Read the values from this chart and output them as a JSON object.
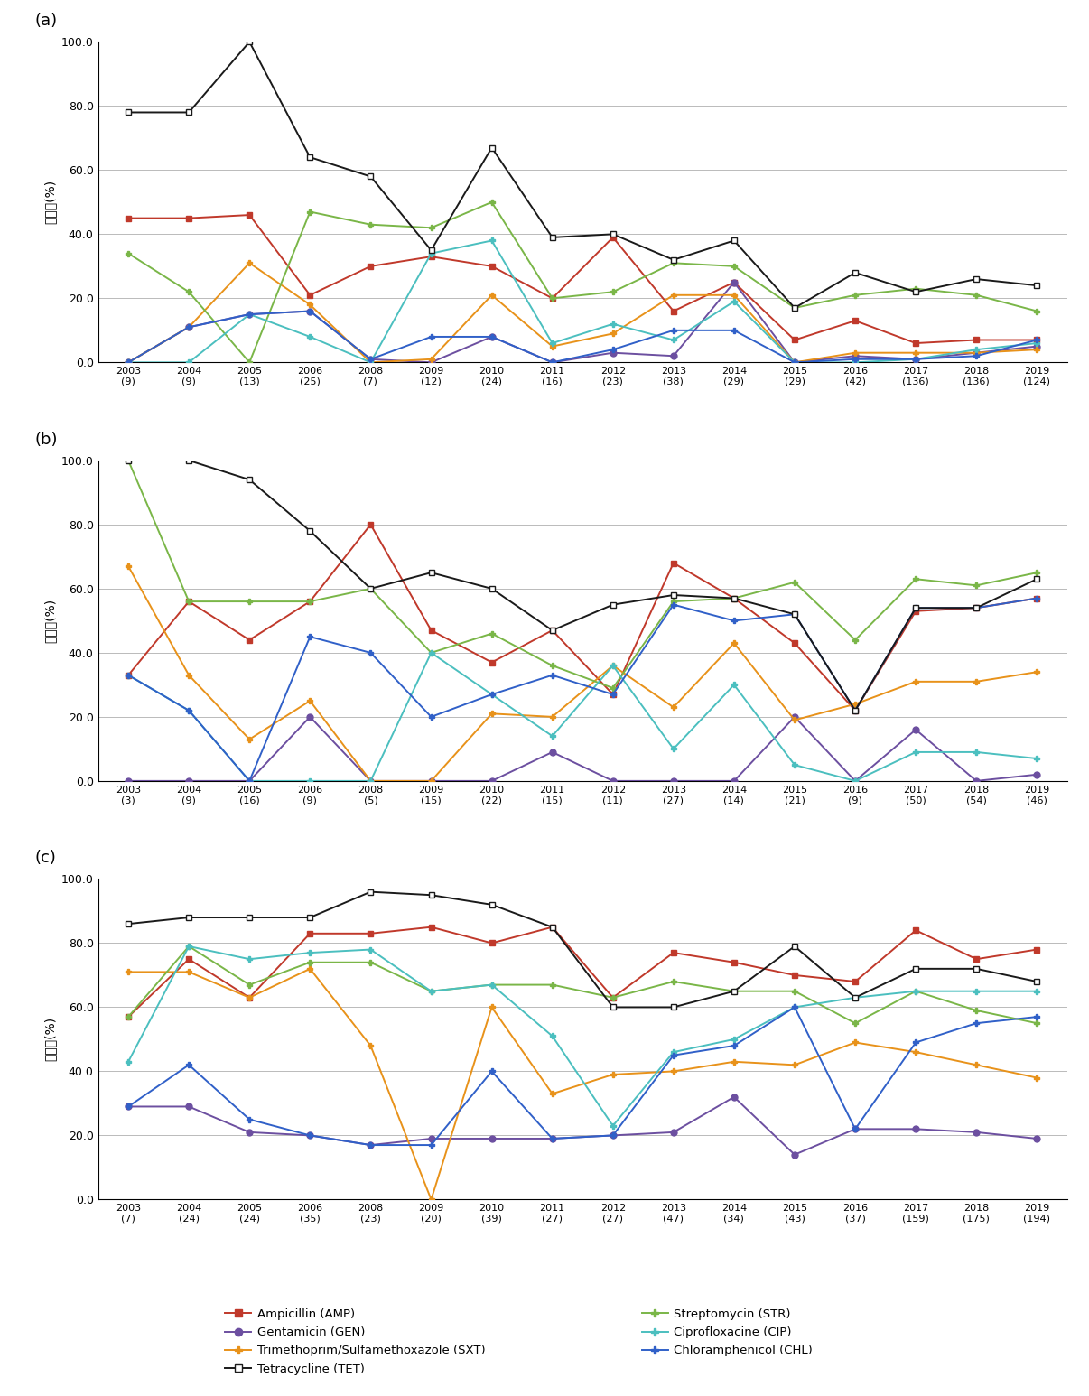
{
  "years_a": [
    "2003\n(9)",
    "2004\n(9)",
    "2005\n(13)",
    "2006\n(25)",
    "2008\n(7)",
    "2009\n(12)",
    "2010\n(24)",
    "2011\n(16)",
    "2012\n(23)",
    "2013\n(38)",
    "2014\n(29)",
    "2015\n(29)",
    "2016\n(42)",
    "2017\n(136)",
    "2018\n(136)",
    "2019\n(124)"
  ],
  "years_b": [
    "2003\n(3)",
    "2004\n(9)",
    "2005\n(16)",
    "2006\n(9)",
    "2008\n(5)",
    "2009\n(15)",
    "2010\n(22)",
    "2011\n(15)",
    "2012\n(11)",
    "2013\n(27)",
    "2014\n(14)",
    "2015\n(21)",
    "2016\n(9)",
    "2017\n(50)",
    "2018\n(54)",
    "2019\n(46)"
  ],
  "years_c": [
    "2003\n(7)",
    "2004\n(24)",
    "2005\n(24)",
    "2006\n(35)",
    "2008\n(23)",
    "2009\n(20)",
    "2010\n(39)",
    "2011\n(27)",
    "2012\n(27)",
    "2013\n(47)",
    "2014\n(34)",
    "2015\n(43)",
    "2016\n(37)",
    "2017\n(159)",
    "2018\n(175)",
    "2019\n(194)"
  ],
  "a_AMP": [
    45.0,
    45.0,
    46.0,
    21.0,
    30.0,
    33.0,
    30.0,
    20.0,
    39.0,
    16.0,
    25.0,
    7.0,
    13.0,
    6.0,
    7.0,
    7.0
  ],
  "a_GEN": [
    0.0,
    11.0,
    15.0,
    16.0,
    1.0,
    0.0,
    8.0,
    0.0,
    3.0,
    2.0,
    25.0,
    0.0,
    2.0,
    1.0,
    3.0,
    5.0
  ],
  "a_SXT": [
    0.0,
    11.0,
    31.0,
    18.0,
    0.0,
    1.0,
    21.0,
    5.0,
    9.0,
    21.0,
    21.0,
    0.0,
    3.0,
    3.0,
    3.0,
    4.0
  ],
  "a_TET": [
    78.0,
    78.0,
    100.0,
    64.0,
    58.0,
    35.0,
    67.0,
    39.0,
    40.0,
    32.0,
    38.0,
    17.0,
    28.0,
    22.0,
    26.0,
    24.0
  ],
  "a_STR": [
    34.0,
    22.0,
    0.0,
    47.0,
    43.0,
    42.0,
    50.0,
    20.0,
    22.0,
    31.0,
    30.0,
    17.0,
    21.0,
    23.0,
    21.0,
    16.0
  ],
  "a_CIP": [
    0.0,
    0.0,
    15.0,
    8.0,
    0.0,
    34.0,
    38.0,
    6.0,
    12.0,
    7.0,
    19.0,
    0.0,
    0.0,
    1.0,
    4.0,
    6.0
  ],
  "a_CHL": [
    0.0,
    11.0,
    15.0,
    16.0,
    1.0,
    8.0,
    8.0,
    0.0,
    4.0,
    10.0,
    10.0,
    0.0,
    1.0,
    1.0,
    2.0,
    7.0
  ],
  "b_AMP": [
    33.0,
    56.0,
    44.0,
    56.0,
    80.0,
    47.0,
    37.0,
    47.0,
    27.0,
    68.0,
    57.0,
    43.0,
    22.0,
    53.0,
    54.0,
    57.0
  ],
  "b_GEN": [
    0.0,
    0.0,
    0.0,
    20.0,
    0.0,
    0.0,
    0.0,
    9.0,
    0.0,
    0.0,
    0.0,
    20.0,
    0.0,
    16.0,
    0.0,
    2.0
  ],
  "b_SXT": [
    67.0,
    33.0,
    13.0,
    25.0,
    0.0,
    0.0,
    21.0,
    20.0,
    36.0,
    23.0,
    43.0,
    19.0,
    24.0,
    31.0,
    31.0,
    34.0
  ],
  "b_TET": [
    100.0,
    100.0,
    94.0,
    78.0,
    60.0,
    65.0,
    60.0,
    47.0,
    55.0,
    58.0,
    57.0,
    52.0,
    22.0,
    54.0,
    54.0,
    63.0
  ],
  "b_STR": [
    100.0,
    56.0,
    56.0,
    56.0,
    60.0,
    40.0,
    46.0,
    36.0,
    29.0,
    56.0,
    57.0,
    62.0,
    44.0,
    63.0,
    61.0,
    65.0
  ],
  "b_CIP": [
    33.0,
    22.0,
    0.0,
    0.0,
    0.0,
    40.0,
    27.0,
    14.0,
    36.0,
    10.0,
    30.0,
    5.0,
    0.0,
    9.0,
    9.0,
    7.0
  ],
  "b_CHL": [
    33.0,
    22.0,
    0.0,
    45.0,
    40.0,
    20.0,
    27.0,
    33.0,
    27.0,
    55.0,
    50.0,
    52.0,
    22.0,
    54.0,
    54.0,
    57.0
  ],
  "c_AMP": [
    57.0,
    75.0,
    63.0,
    83.0,
    83.0,
    85.0,
    80.0,
    85.0,
    63.0,
    77.0,
    74.0,
    70.0,
    68.0,
    84.0,
    75.0,
    78.0
  ],
  "c_GEN": [
    29.0,
    29.0,
    21.0,
    20.0,
    17.0,
    19.0,
    19.0,
    19.0,
    20.0,
    21.0,
    32.0,
    14.0,
    22.0,
    22.0,
    21.0,
    19.0
  ],
  "c_SXT": [
    71.0,
    71.0,
    63.0,
    72.0,
    48.0,
    0.0,
    60.0,
    33.0,
    39.0,
    40.0,
    43.0,
    42.0,
    49.0,
    46.0,
    42.0,
    38.0
  ],
  "c_TET": [
    86.0,
    88.0,
    88.0,
    88.0,
    96.0,
    95.0,
    92.0,
    85.0,
    60.0,
    60.0,
    65.0,
    79.0,
    63.0,
    72.0,
    72.0,
    68.0
  ],
  "c_STR": [
    57.0,
    79.0,
    67.0,
    74.0,
    74.0,
    65.0,
    67.0,
    67.0,
    63.0,
    68.0,
    65.0,
    65.0,
    55.0,
    65.0,
    59.0,
    55.0
  ],
  "c_CIP": [
    43.0,
    79.0,
    75.0,
    77.0,
    78.0,
    65.0,
    67.0,
    51.0,
    23.0,
    46.0,
    50.0,
    60.0,
    63.0,
    65.0,
    65.0,
    65.0
  ],
  "c_CHL": [
    29.0,
    42.0,
    25.0,
    20.0,
    17.0,
    17.0,
    40.0,
    19.0,
    20.0,
    45.0,
    48.0,
    60.0,
    22.0,
    49.0,
    55.0,
    57.0
  ],
  "colors": {
    "AMP": "#c0392b",
    "GEN": "#6c4fa0",
    "SXT": "#e8921a",
    "TET": "#1a1a1a",
    "STR": "#7ab648",
    "CIP": "#4bbfbf",
    "CHL": "#3060c8"
  },
  "ylabel": "내성률(%)",
  "ylim": [
    0.0,
    100.0
  ],
  "yticks": [
    0.0,
    20.0,
    40.0,
    60.0,
    80.0,
    100.0
  ],
  "legend_entries": [
    [
      "Ampicillin (AMP)",
      "AMP",
      "P"
    ],
    [
      "Streptomycin (STR)",
      "STR",
      "P"
    ],
    [
      "Gentamicin (GEN)",
      "GEN",
      "o"
    ],
    [
      "Ciprofloxacine (CIP)",
      "CIP",
      "P"
    ],
    [
      "Trimethoprim/Sulfamethoxazole (SXT)",
      "SXT",
      "P"
    ],
    [
      "Chloramphenicol (CHL)",
      "CHL",
      "P"
    ],
    [
      "Tetracycline (TET)",
      "TET",
      "s"
    ]
  ]
}
